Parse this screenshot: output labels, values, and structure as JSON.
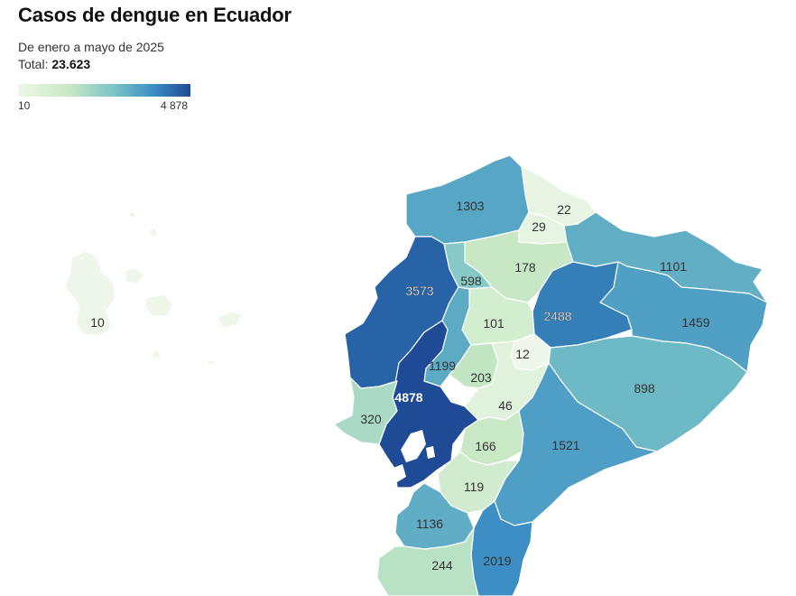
{
  "title": "Casos de dengue en Ecuador",
  "subtitle": "De enero a mayo de 2025",
  "total_label": "Total:",
  "total_value": "23.623",
  "legend": {
    "min": "10",
    "max": "4 878",
    "min_value": 10,
    "max_value": 4878
  },
  "provinces": [
    {
      "cases": 10
    },
    {
      "cases": 1303
    },
    {
      "cases": 22
    },
    {
      "cases": 29
    },
    {
      "cases": 178
    },
    {
      "cases": 1101
    },
    {
      "cases": 3573
    },
    {
      "cases": 598
    },
    {
      "cases": 2488
    },
    {
      "cases": 101
    },
    {
      "cases": 1459
    },
    {
      "cases": 12
    },
    {
      "cases": 1199
    },
    {
      "cases": 203
    },
    {
      "cases": 898
    },
    {
      "cases": 4878
    },
    {
      "cases": 46
    },
    {
      "cases": 320
    },
    {
      "cases": 166
    },
    {
      "cases": 1521
    },
    {
      "cases": 119
    },
    {
      "cases": 1136
    },
    {
      "cases": 2019
    },
    {
      "cases": 244
    }
  ]
}
